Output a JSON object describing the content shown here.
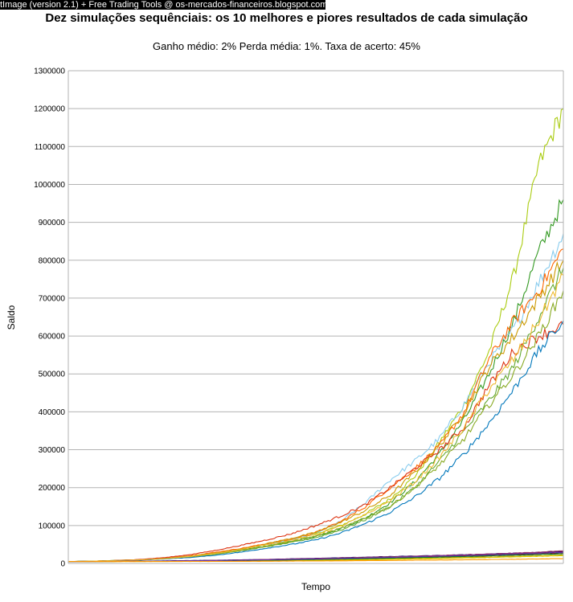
{
  "watermark": "tImage (version 2.1) + Free Trading Tools @ os-mercados-financeiros.blogspot.com",
  "chart_data": {
    "type": "line",
    "title": "Dez simulações sequênciais: os 10 melhores e piores resultados de cada simulação",
    "subtitle": "Ganho médio: 2% Perda média: 1%. Taxa de acerto: 45%",
    "xlabel": "Tempo",
    "ylabel": "Saldo",
    "ylim": [
      0,
      1300000
    ],
    "yticks": [
      0,
      100000,
      200000,
      300000,
      400000,
      500000,
      600000,
      700000,
      800000,
      900000,
      1000000,
      1100000,
      1200000,
      1300000
    ],
    "ytick_labels": [
      "0",
      "100000",
      "200000",
      "300000",
      "400000",
      "500000",
      "600000",
      "700000",
      "800000",
      "900000",
      "1000000",
      "1100000",
      "1200000",
      "1300000"
    ],
    "x_tick_labels": [],
    "grid": true,
    "legend": "none",
    "x": [
      0,
      5,
      10,
      15,
      20,
      25,
      30,
      35,
      40,
      45,
      50,
      55,
      60,
      65,
      70,
      75,
      80,
      85,
      90,
      95,
      100
    ],
    "series": [
      {
        "color": "#aacc11",
        "values": [
          5000,
          6000,
          8000,
          10000,
          14000,
          20000,
          28000,
          38000,
          50000,
          62000,
          78000,
          100000,
          130000,
          170000,
          230000,
          320000,
          420000,
          560000,
          760000,
          1050000,
          1200000
        ]
      },
      {
        "color": "#339922",
        "values": [
          5000,
          6000,
          8000,
          10000,
          14000,
          19000,
          26000,
          35000,
          46000,
          58000,
          72000,
          92000,
          120000,
          160000,
          215000,
          290000,
          380000,
          500000,
          640000,
          820000,
          960000
        ]
      },
      {
        "color": "#88ccee",
        "values": [
          5000,
          6000,
          8000,
          10000,
          14000,
          20000,
          28000,
          38000,
          50000,
          62000,
          80000,
          110000,
          160000,
          220000,
          270000,
          330000,
          420000,
          530000,
          620000,
          740000,
          870000
        ]
      },
      {
        "color": "#ff6600",
        "values": [
          5000,
          6000,
          8000,
          10000,
          14000,
          21000,
          30000,
          40000,
          52000,
          64000,
          82000,
          110000,
          150000,
          200000,
          250000,
          310000,
          400000,
          540000,
          640000,
          720000,
          830000
        ]
      },
      {
        "color": "#cc9900",
        "values": [
          5000,
          6000,
          8000,
          10000,
          14000,
          20000,
          28000,
          38000,
          52000,
          66000,
          82000,
          108000,
          140000,
          180000,
          240000,
          310000,
          400000,
          520000,
          600000,
          700000,
          800000
        ]
      },
      {
        "color": "#66aa33",
        "values": [
          5000,
          6000,
          8000,
          10000,
          13000,
          18000,
          25000,
          34000,
          44000,
          55000,
          68000,
          88000,
          115000,
          150000,
          200000,
          270000,
          350000,
          430000,
          520000,
          650000,
          780000
        ]
      },
      {
        "color": "#dd3311",
        "values": [
          5000,
          6000,
          8000,
          11000,
          16000,
          24000,
          35000,
          48000,
          62000,
          78000,
          100000,
          125000,
          155000,
          200000,
          250000,
          300000,
          360000,
          470000,
          560000,
          600000,
          630000
        ]
      },
      {
        "color": "#0077bb",
        "values": [
          5000,
          6000,
          7000,
          9000,
          12000,
          16000,
          22000,
          30000,
          40000,
          50000,
          62000,
          80000,
          105000,
          135000,
          175000,
          225000,
          290000,
          370000,
          460000,
          560000,
          640000
        ]
      },
      {
        "color": "#88aa22",
        "values": [
          5000,
          6000,
          7500,
          9500,
          13000,
          18000,
          25000,
          34000,
          45000,
          57000,
          72000,
          92000,
          120000,
          150000,
          200000,
          260000,
          330000,
          420000,
          500000,
          600000,
          720000
        ]
      },
      {
        "color": "#eebb33",
        "values": [
          5000,
          6000,
          7500,
          9500,
          13000,
          19000,
          27000,
          37000,
          49000,
          61000,
          76000,
          98000,
          128000,
          165000,
          215000,
          280000,
          360000,
          460000,
          540000,
          640000,
          760000
        ]
      },
      {
        "color": "#000066",
        "values": [
          5000,
          5200,
          5500,
          6000,
          6800,
          7600,
          8500,
          9500,
          10500,
          12000,
          13500,
          15000,
          16500,
          18000,
          19500,
          21000,
          23000,
          25000,
          27000,
          29000,
          32000
        ]
      },
      {
        "color": "#660033",
        "values": [
          5000,
          5100,
          5300,
          5600,
          6200,
          7000,
          8000,
          9000,
          10000,
          11000,
          12500,
          14000,
          15500,
          17000,
          18500,
          20000,
          22000,
          24000,
          26000,
          28000,
          30000
        ]
      },
      {
        "color": "#993366",
        "values": [
          5000,
          5100,
          5400,
          5800,
          6400,
          7200,
          8200,
          9200,
          10500,
          11800,
          13000,
          14500,
          16000,
          17500,
          19000,
          21000,
          23000,
          25000,
          27000,
          30000,
          33000
        ]
      },
      {
        "color": "#333333",
        "values": [
          5000,
          5100,
          5300,
          5500,
          5900,
          6400,
          7000,
          7800,
          8800,
          10000,
          11500,
          13000,
          14500,
          16000,
          17500,
          19000,
          20500,
          22000,
          24000,
          26000,
          28000
        ]
      },
      {
        "color": "#cc0000",
        "values": [
          5000,
          5050,
          5200,
          5400,
          5700,
          6100,
          6600,
          7200,
          8000,
          9000,
          10000,
          11200,
          12500,
          14000,
          15500,
          17000,
          18500,
          20000,
          22000,
          24000,
          26000
        ]
      },
      {
        "color": "#aaaa00",
        "values": [
          5000,
          5050,
          5150,
          5300,
          5500,
          5800,
          6200,
          6700,
          7300,
          8000,
          8800,
          9700,
          10700,
          11800,
          13000,
          14300,
          15700,
          17200,
          18800,
          20500,
          22500
        ]
      },
      {
        "color": "#ddcc00",
        "values": [
          5000,
          5000,
          5050,
          5100,
          5200,
          5400,
          5700,
          6100,
          6600,
          7200,
          7900,
          8700,
          9600,
          10600,
          11700,
          12900,
          14200,
          15600,
          17100,
          18700,
          20500
        ]
      },
      {
        "color": "#117733",
        "values": [
          5000,
          5050,
          5200,
          5450,
          5800,
          6300,
          6900,
          7600,
          8400,
          9300,
          10300,
          11400,
          12600,
          13900,
          15300,
          16800,
          18400,
          20100,
          21900,
          23800,
          26000
        ]
      },
      {
        "color": "#6633aa",
        "values": [
          5000,
          5100,
          5350,
          5700,
          6200,
          6900,
          7700,
          8600,
          9600,
          10700,
          11900,
          13200,
          14600,
          16100,
          17700,
          19400,
          21200,
          23100,
          25100,
          27200,
          29500
        ]
      },
      {
        "color": "#ff9900",
        "values": [
          5000,
          5000,
          5020,
          5050,
          5100,
          5200,
          5350,
          5550,
          5800,
          6100,
          6450,
          6850,
          7300,
          7800,
          8350,
          8950,
          9600,
          10300,
          11050,
          11850,
          12700
        ]
      }
    ]
  }
}
